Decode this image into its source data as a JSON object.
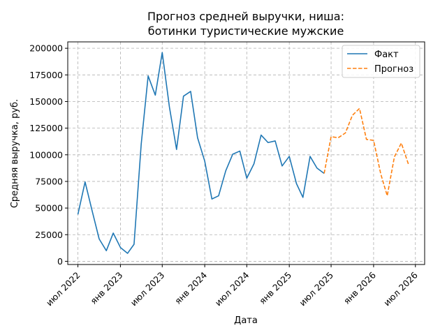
{
  "chart_data": {
    "type": "line",
    "title_lines": [
      "Прогноз средней выручки, ниша:",
      "ботинки туристические мужские"
    ],
    "xlabel": "Дата",
    "ylabel": "Средняя выручка, руб.",
    "ylim": [
      -3000,
      206000
    ],
    "yticks": [
      0,
      25000,
      50000,
      75000,
      100000,
      125000,
      150000,
      175000,
      200000
    ],
    "ytick_labels": [
      "0",
      "25000",
      "50000",
      "75000",
      "100000",
      "125000",
      "150000",
      "175000",
      "200000"
    ],
    "xticks": [
      {
        "label": "июл 2022",
        "date": "2022-07-01"
      },
      {
        "label": "янв 2023",
        "date": "2023-01-01"
      },
      {
        "label": "июл 2023",
        "date": "2023-07-01"
      },
      {
        "label": "янв 2024",
        "date": "2024-01-01"
      },
      {
        "label": "июл 2024",
        "date": "2024-07-01"
      },
      {
        "label": "янв 2025",
        "date": "2025-01-01"
      },
      {
        "label": "июл 2025",
        "date": "2025-07-01"
      },
      {
        "label": "янв 2026",
        "date": "2026-01-01"
      },
      {
        "label": "июл 2026",
        "date": "2026-07-01"
      }
    ],
    "xlim": [
      "2022-05-18",
      "2026-08-10"
    ],
    "grid": true,
    "legend_position": "top-right",
    "series": [
      {
        "name": "Факт",
        "color": "#1f77b4",
        "style": "solid",
        "points": [
          [
            "2022-07-01",
            44000
          ],
          [
            "2022-08-01",
            74500
          ],
          [
            "2022-09-01",
            47000
          ],
          [
            "2022-10-01",
            21000
          ],
          [
            "2022-11-01",
            10000
          ],
          [
            "2022-12-01",
            26500
          ],
          [
            "2023-01-01",
            13000
          ],
          [
            "2023-02-01",
            7500
          ],
          [
            "2023-03-01",
            16000
          ],
          [
            "2023-04-01",
            110000
          ],
          [
            "2023-05-01",
            174000
          ],
          [
            "2023-06-01",
            156000
          ],
          [
            "2023-07-01",
            196000
          ],
          [
            "2023-08-01",
            145000
          ],
          [
            "2023-09-01",
            105000
          ],
          [
            "2023-10-01",
            155000
          ],
          [
            "2023-11-01",
            159500
          ],
          [
            "2023-12-01",
            116000
          ],
          [
            "2024-01-01",
            94000
          ],
          [
            "2024-02-01",
            58500
          ],
          [
            "2024-03-01",
            61500
          ],
          [
            "2024-04-01",
            85000
          ],
          [
            "2024-05-01",
            100500
          ],
          [
            "2024-06-01",
            103500
          ],
          [
            "2024-07-01",
            78000
          ],
          [
            "2024-08-01",
            91500
          ],
          [
            "2024-09-01",
            118500
          ],
          [
            "2024-10-01",
            111500
          ],
          [
            "2024-11-01",
            113000
          ],
          [
            "2024-12-01",
            89500
          ],
          [
            "2025-01-01",
            98500
          ],
          [
            "2025-02-01",
            73000
          ],
          [
            "2025-03-01",
            60000
          ],
          [
            "2025-04-01",
            98500
          ],
          [
            "2025-05-01",
            87500
          ],
          [
            "2025-06-01",
            82500
          ]
        ]
      },
      {
        "name": "Прогноз",
        "color": "#ff7f0e",
        "style": "dashed",
        "points": [
          [
            "2025-06-01",
            82500
          ],
          [
            "2025-07-01",
            117000
          ],
          [
            "2025-08-01",
            116000
          ],
          [
            "2025-09-01",
            120500
          ],
          [
            "2025-10-01",
            137000
          ],
          [
            "2025-11-01",
            143500
          ],
          [
            "2025-12-01",
            114500
          ],
          [
            "2026-01-01",
            113500
          ],
          [
            "2026-02-01",
            82000
          ],
          [
            "2026-03-01",
            61500
          ],
          [
            "2026-04-01",
            98000
          ],
          [
            "2026-05-01",
            111000
          ],
          [
            "2026-06-01",
            91000
          ]
        ]
      }
    ]
  }
}
